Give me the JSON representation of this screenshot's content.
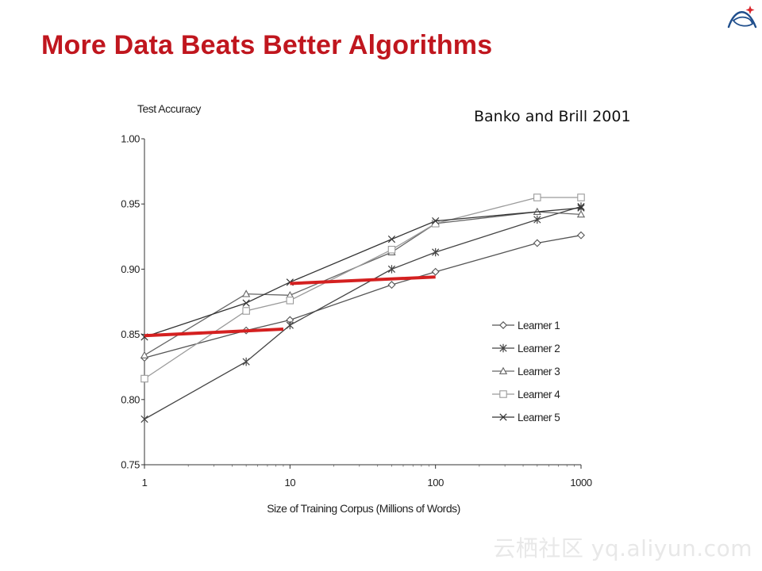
{
  "slide": {
    "title": "More Data Beats Better Algorithms",
    "citation": "Banko and Brill 2001",
    "watermark": "云栖社区 yq.aliyun.com",
    "title_color": "#c0161e"
  },
  "logo": {
    "icon": "swirl-logo-icon",
    "colors": [
      "#1f4e8c",
      "#d9252b"
    ]
  },
  "chart_data": {
    "type": "line",
    "title": "",
    "ylabel": "Test Accuracy",
    "xlabel": "Size of Training Corpus (Millions of Words)",
    "x_scale": "log",
    "xlim": [
      1,
      1000
    ],
    "ylim": [
      0.75,
      1.0
    ],
    "x_ticks": [
      1,
      10,
      100,
      1000
    ],
    "x_tick_labels": [
      "1",
      "10",
      "100",
      "1000"
    ],
    "y_ticks": [
      0.75,
      0.8,
      0.85,
      0.9,
      0.95,
      1.0
    ],
    "y_tick_labels": [
      "0.75",
      "0.80",
      "0.85",
      "0.90",
      "0.95",
      "1.00"
    ],
    "grid": false,
    "legend_position": "right",
    "series": [
      {
        "name": "Learner 1",
        "marker": "diamond",
        "color": "#555555",
        "x": [
          1,
          5,
          10,
          50,
          100,
          500,
          1000
        ],
        "y": [
          0.832,
          0.853,
          0.861,
          0.888,
          0.898,
          0.92,
          0.926
        ]
      },
      {
        "name": "Learner 2",
        "marker": "star",
        "color": "#444444",
        "x": [
          1,
          5,
          10,
          50,
          100,
          500,
          1000
        ],
        "y": [
          0.785,
          0.829,
          0.857,
          0.9,
          0.913,
          0.938,
          0.948
        ]
      },
      {
        "name": "Learner 3",
        "marker": "triangle",
        "color": "#666666",
        "x": [
          1,
          5,
          10,
          50,
          100,
          500,
          1000
        ],
        "y": [
          0.834,
          0.881,
          0.88,
          0.913,
          0.935,
          0.944,
          0.942
        ]
      },
      {
        "name": "Learner 4",
        "marker": "square",
        "color": "#9a9a9a",
        "x": [
          1,
          5,
          10,
          50,
          100,
          500,
          1000
        ],
        "y": [
          0.816,
          0.868,
          0.876,
          0.915,
          0.935,
          0.955,
          0.955
        ]
      },
      {
        "name": "Learner 5",
        "marker": "x",
        "color": "#333333",
        "x": [
          1,
          5,
          10,
          50,
          100,
          1000
        ],
        "y": [
          0.848,
          0.874,
          0.89,
          0.923,
          0.937,
          0.947
        ]
      }
    ],
    "annotations": [
      {
        "type": "red-line",
        "color": "#d42020",
        "x": [
          1,
          9
        ],
        "y": [
          0.849,
          0.854
        ]
      },
      {
        "type": "red-line",
        "color": "#d42020",
        "x": [
          10,
          100
        ],
        "y": [
          0.889,
          0.894
        ]
      }
    ]
  }
}
